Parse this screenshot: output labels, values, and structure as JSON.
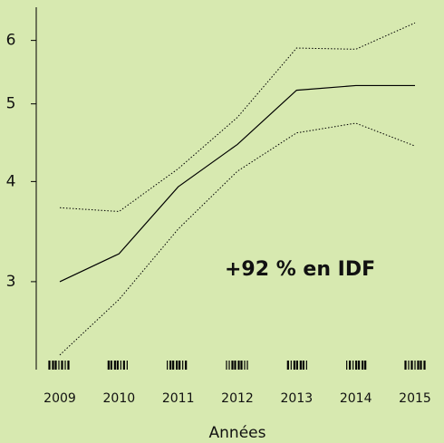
{
  "chart_data": {
    "type": "line",
    "categories": [
      "2009",
      "2010",
      "2011",
      "2012",
      "2013",
      "2014",
      "2015"
    ],
    "series": [
      {
        "color": "#000000",
        "style": "solid",
        "values": [
          3.0,
          3.25,
          3.94,
          4.45,
          5.2,
          5.27,
          5.27
        ]
      },
      {
        "color": "#000000",
        "style": "dotted",
        "values": [
          3.71,
          3.67,
          4.15,
          4.81,
          5.87,
          5.85,
          6.31
        ]
      },
      {
        "color": "#000000",
        "style": "dotted",
        "values": [
          2.43,
          2.85,
          3.49,
          4.12,
          4.6,
          4.73,
          4.43
        ]
      }
    ],
    "ylim": [
      2.33,
      6.6
    ],
    "yticks": [
      3,
      4,
      5,
      6
    ],
    "log_scale": true,
    "xlabel": "Années",
    "annotation": "+92 % en IDF",
    "annotation_color": "#4bacc6"
  }
}
